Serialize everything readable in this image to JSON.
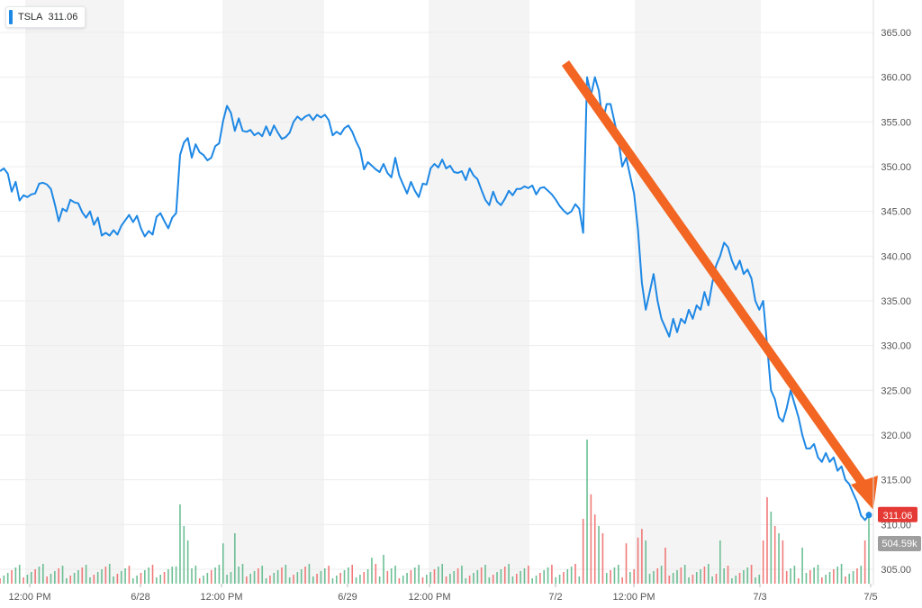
{
  "legend": {
    "symbol": "TSLA",
    "value": "311.06",
    "color": "#1e88e5"
  },
  "price_badge": {
    "label": "311.06",
    "color": "#e53935"
  },
  "volume_badge": {
    "label": "504.59k",
    "color": "#9e9e9e"
  },
  "colors": {
    "line": "#1e88e5",
    "arrow": "#f26522",
    "vol_up": "#5cb88a",
    "vol_down": "#ef6b6b",
    "band": "#f4f4f4"
  },
  "chart_data": {
    "type": "line",
    "title": "",
    "ticker": "TSLA",
    "y_ticks": [
      "365.00",
      "360.00",
      "355.00",
      "350.00",
      "345.00",
      "340.00",
      "335.00",
      "330.00",
      "325.00",
      "320.00",
      "315.00",
      "310.00",
      "305.00"
    ],
    "ylim": [
      303,
      366
    ],
    "x_tick_labels": [
      "12:00 PM",
      "6/28",
      "12:00 PM",
      "6/29",
      "12:00 PM",
      "7/2",
      "12:00 PM",
      "7/3",
      "7/5"
    ],
    "grid": true,
    "price_axis_side": "right",
    "series": [
      {
        "name": "TSLA",
        "points": [
          [
            0,
            349.5
          ],
          [
            1,
            349.8
          ],
          [
            2,
            349.2
          ],
          [
            3,
            347.2
          ],
          [
            4,
            348.3
          ],
          [
            5,
            346.2
          ],
          [
            6,
            346.8
          ],
          [
            7,
            346.6
          ],
          [
            8,
            346.9
          ],
          [
            9,
            347.0
          ],
          [
            10,
            348.1
          ],
          [
            11,
            348.2
          ],
          [
            12,
            348.0
          ],
          [
            13,
            347.5
          ],
          [
            14,
            345.8
          ],
          [
            15,
            343.9
          ],
          [
            16,
            345.3
          ],
          [
            17,
            345.0
          ],
          [
            18,
            346.3
          ],
          [
            19,
            346.0
          ],
          [
            20,
            345.9
          ],
          [
            21,
            344.9
          ],
          [
            22,
            344.3
          ],
          [
            23,
            345.0
          ],
          [
            24,
            343.5
          ],
          [
            25,
            344.3
          ],
          [
            26,
            342.3
          ],
          [
            27,
            342.6
          ],
          [
            28,
            342.3
          ],
          [
            29,
            342.9
          ],
          [
            30,
            342.4
          ],
          [
            31,
            343.4
          ],
          [
            32,
            344.0
          ],
          [
            33,
            344.6
          ],
          [
            34,
            343.8
          ],
          [
            35,
            344.5
          ],
          [
            36,
            343.1
          ],
          [
            37,
            342.2
          ],
          [
            38,
            342.8
          ],
          [
            39,
            342.4
          ],
          [
            40,
            344.4
          ],
          [
            41,
            344.8
          ],
          [
            42,
            343.9
          ],
          [
            43,
            343.1
          ],
          [
            44,
            344.3
          ],
          [
            45,
            344.8
          ],
          [
            46,
            351.3
          ],
          [
            47,
            352.7
          ],
          [
            48,
            353.2
          ],
          [
            49,
            351.0
          ],
          [
            50,
            352.5
          ],
          [
            51,
            351.6
          ],
          [
            52,
            351.3
          ],
          [
            53,
            350.7
          ],
          [
            54,
            351.0
          ],
          [
            55,
            352.3
          ],
          [
            56,
            352.6
          ],
          [
            57,
            355.1
          ],
          [
            58,
            356.8
          ],
          [
            59,
            356.0
          ],
          [
            60,
            354.0
          ],
          [
            61,
            355.4
          ],
          [
            62,
            354.0
          ],
          [
            63,
            353.9
          ],
          [
            64,
            354.1
          ],
          [
            65,
            353.5
          ],
          [
            66,
            353.8
          ],
          [
            67,
            353.4
          ],
          [
            68,
            354.5
          ],
          [
            69,
            353.5
          ],
          [
            70,
            354.6
          ],
          [
            71,
            353.8
          ],
          [
            72,
            353.1
          ],
          [
            73,
            353.3
          ],
          [
            74,
            353.8
          ],
          [
            75,
            355.0
          ],
          [
            76,
            355.6
          ],
          [
            77,
            355.2
          ],
          [
            78,
            355.6
          ],
          [
            79,
            355.8
          ],
          [
            80,
            355.2
          ],
          [
            81,
            355.8
          ],
          [
            82,
            355.5
          ],
          [
            83,
            355.8
          ],
          [
            84,
            355.2
          ],
          [
            85,
            353.5
          ],
          [
            86,
            353.9
          ],
          [
            87,
            353.6
          ],
          [
            88,
            354.3
          ],
          [
            89,
            354.6
          ],
          [
            90,
            353.9
          ],
          [
            91,
            352.8
          ],
          [
            92,
            351.9
          ],
          [
            93,
            349.7
          ],
          [
            94,
            350.5
          ],
          [
            95,
            350.1
          ],
          [
            96,
            349.7
          ],
          [
            97,
            349.4
          ],
          [
            98,
            350.3
          ],
          [
            99,
            349.3
          ],
          [
            100,
            348.8
          ],
          [
            101,
            351.0
          ],
          [
            102,
            349.0
          ],
          [
            103,
            348.0
          ],
          [
            104,
            347.0
          ],
          [
            105,
            348.3
          ],
          [
            106,
            347.3
          ],
          [
            107,
            346.6
          ],
          [
            108,
            348.1
          ],
          [
            109,
            348.0
          ],
          [
            110,
            349.8
          ],
          [
            111,
            350.3
          ],
          [
            112,
            349.9
          ],
          [
            113,
            350.8
          ],
          [
            114,
            349.8
          ],
          [
            115,
            350.1
          ],
          [
            116,
            349.4
          ],
          [
            117,
            349.3
          ],
          [
            118,
            349.5
          ],
          [
            119,
            348.5
          ],
          [
            120,
            349.8
          ],
          [
            121,
            349.0
          ],
          [
            122,
            348.6
          ],
          [
            123,
            347.4
          ],
          [
            124,
            346.3
          ],
          [
            125,
            345.7
          ],
          [
            126,
            347.2
          ],
          [
            127,
            346.1
          ],
          [
            128,
            345.7
          ],
          [
            129,
            346.4
          ],
          [
            130,
            347.3
          ],
          [
            131,
            346.8
          ],
          [
            132,
            347.5
          ],
          [
            133,
            347.5
          ],
          [
            134,
            347.8
          ],
          [
            135,
            347.6
          ],
          [
            136,
            347.9
          ],
          [
            137,
            346.9
          ],
          [
            138,
            347.6
          ],
          [
            139,
            347.7
          ],
          [
            140,
            347.3
          ],
          [
            141,
            346.9
          ],
          [
            142,
            346.3
          ],
          [
            143,
            345.6
          ],
          [
            144,
            345.1
          ],
          [
            145,
            344.7
          ],
          [
            146,
            345.0
          ],
          [
            147,
            345.8
          ],
          [
            148,
            345.3
          ],
          [
            149,
            342.6
          ],
          [
            150,
            360.0
          ],
          [
            151,
            358.0
          ],
          [
            152,
            360.0
          ],
          [
            153,
            358.5
          ],
          [
            154,
            355.0
          ],
          [
            155,
            357.0
          ],
          [
            156,
            357.0
          ],
          [
            157,
            355.0
          ],
          [
            158,
            353.0
          ],
          [
            159,
            350.0
          ],
          [
            160,
            351.0
          ],
          [
            161,
            349.0
          ],
          [
            162,
            347.0
          ],
          [
            163,
            343.0
          ],
          [
            164,
            337.0
          ],
          [
            165,
            334.0
          ],
          [
            166,
            336.0
          ],
          [
            167,
            338.0
          ],
          [
            168,
            335.0
          ],
          [
            169,
            333.0
          ],
          [
            170,
            332.0
          ],
          [
            171,
            331.0
          ],
          [
            172,
            333.0
          ],
          [
            173,
            331.5
          ],
          [
            174,
            333.0
          ],
          [
            175,
            332.5
          ],
          [
            176,
            334.0
          ],
          [
            177,
            333.0
          ],
          [
            178,
            334.5
          ],
          [
            179,
            334.0
          ],
          [
            180,
            336.0
          ],
          [
            181,
            334.5
          ],
          [
            182,
            337.0
          ],
          [
            183,
            339.0
          ],
          [
            184,
            340.0
          ],
          [
            185,
            341.5
          ],
          [
            186,
            341.0
          ],
          [
            187,
            339.5
          ],
          [
            188,
            338.5
          ],
          [
            189,
            339.5
          ],
          [
            190,
            338.0
          ],
          [
            191,
            338.5
          ],
          [
            192,
            337.5
          ],
          [
            193,
            335.0
          ],
          [
            194,
            334.0
          ],
          [
            195,
            335.0
          ],
          [
            196,
            330.0
          ],
          [
            197,
            325.0
          ],
          [
            198,
            324.0
          ],
          [
            199,
            322.0
          ],
          [
            200,
            321.5
          ],
          [
            201,
            323.0
          ],
          [
            202,
            325.0
          ],
          [
            203,
            323.5
          ],
          [
            204,
            322.0
          ],
          [
            205,
            320.0
          ],
          [
            206,
            318.5
          ],
          [
            207,
            318.5
          ],
          [
            208,
            319.0
          ],
          [
            209,
            317.5
          ],
          [
            210,
            317.0
          ],
          [
            211,
            318.0
          ],
          [
            212,
            317.0
          ],
          [
            213,
            317.5
          ],
          [
            214,
            316.0
          ],
          [
            215,
            316.5
          ],
          [
            216,
            315.0
          ],
          [
            217,
            314.5
          ],
          [
            218,
            313.5
          ],
          [
            219,
            312.5
          ],
          [
            220,
            311.0
          ],
          [
            221,
            310.5
          ],
          [
            222,
            311.06
          ]
        ]
      }
    ],
    "volume": {
      "latest_label": "504.59k",
      "bars": [
        {
          "x": 45,
          "v": 0.12,
          "up": true
        },
        {
          "x": 46,
          "v": 0.55,
          "up": true
        },
        {
          "x": 47,
          "v": 0.4,
          "up": true
        },
        {
          "x": 48,
          "v": 0.3,
          "up": true
        },
        {
          "x": 57,
          "v": 0.28,
          "up": true
        },
        {
          "x": 60,
          "v": 0.35,
          "up": true
        },
        {
          "x": 95,
          "v": 0.18,
          "up": true
        },
        {
          "x": 98,
          "v": 0.2,
          "up": true
        },
        {
          "x": 149,
          "v": 0.45,
          "up": false
        },
        {
          "x": 150,
          "v": 1.0,
          "up": true
        },
        {
          "x": 151,
          "v": 0.62,
          "up": false
        },
        {
          "x": 152,
          "v": 0.48,
          "up": false
        },
        {
          "x": 153,
          "v": 0.4,
          "up": true
        },
        {
          "x": 154,
          "v": 0.35,
          "up": false
        },
        {
          "x": 160,
          "v": 0.28,
          "up": false
        },
        {
          "x": 163,
          "v": 0.32,
          "up": false
        },
        {
          "x": 164,
          "v": 0.38,
          "up": false
        },
        {
          "x": 165,
          "v": 0.3,
          "up": true
        },
        {
          "x": 170,
          "v": 0.25,
          "up": false
        },
        {
          "x": 184,
          "v": 0.3,
          "up": true
        },
        {
          "x": 195,
          "v": 0.3,
          "up": false
        },
        {
          "x": 196,
          "v": 0.6,
          "up": false
        },
        {
          "x": 197,
          "v": 0.5,
          "up": true
        },
        {
          "x": 198,
          "v": 0.4,
          "up": false
        },
        {
          "x": 199,
          "v": 0.35,
          "up": true
        },
        {
          "x": 200,
          "v": 0.3,
          "up": false
        },
        {
          "x": 205,
          "v": 0.25,
          "up": true
        },
        {
          "x": 221,
          "v": 0.3,
          "up": false
        },
        {
          "x": 222,
          "v": 0.5,
          "up": true
        }
      ]
    }
  }
}
